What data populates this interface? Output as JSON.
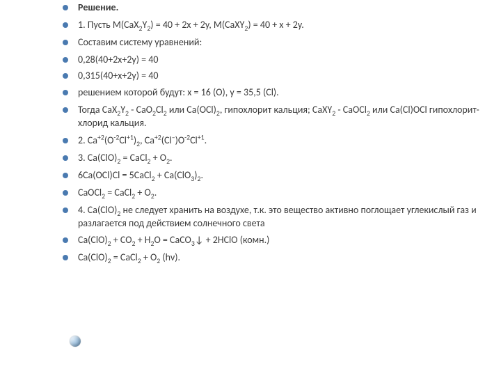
{
  "bullets": {
    "title": "Решение.",
    "l1_a": "1. Пусть M(CaX",
    "l1_b": "Y",
    "l1_c": ") = 40 + 2x + 2y, M(CaXY",
    "l1_d": ") = 40 + x + 2y.",
    "l2": "Составим систему уравнений:",
    "l3": "0,28(40+2x+2y) = 40",
    "l4": "0,315(40+x+2y) = 40",
    "l5": "решением которой будут: x = 16 (O), y = 35,5 (Cl).",
    "l6_a": "Тогда CaX",
    "l6_b": "Y",
    "l6_c": " - CaO",
    "l6_d": "Cl",
    "l6_e": " или Ca(OCl)",
    "l6_f": ", гипохлорит кальция; CaXY",
    "l6_g": " - CaOCl",
    "l6_h": " или Ca(Cl)OCl гипохлорит-хлорид кальция.",
    "l7_a": "2. Ca",
    "l7_b": "(O",
    "l7_c": "Cl",
    "l7_d": ")",
    "l7_e": ", Ca",
    "l7_f": "(Cl",
    "l7_g": ")O",
    "l7_h": "Cl",
    "l7_i": ".",
    "l8_a": "3. Ca(ClO)",
    "l8_b": " = CaCl",
    "l8_c": " + O",
    "l8_d": ".",
    "l9_a": "6Ca(OCl)Cl = 5CaCl",
    "l9_b": " + Ca(ClO",
    "l9_c": ")",
    "l9_d": ".",
    "l10_a": "CaOCl",
    "l10_b": " = CaCl",
    "l10_c": " + O",
    "l10_d": ".",
    "l11_a": "4. Ca(ClO)",
    "l11_b": " не следует хранить на воздухе, т.к. это вещество активно поглощает углекислый газ и разлагается под действием солнечного света",
    "l12_a": "Ca(ClO)",
    "l12_b": " + CO",
    "l12_c": " + H",
    "l12_d": "O = CaCO",
    "l12_e": "↓ + 2HClO (комн.)",
    "l13_a": "Ca(ClO)",
    "l13_b": " = CaCl",
    "l13_c": " + O",
    "l13_d": " (hν).",
    "sub2": "2",
    "sub3": "3",
    "supP2": "+2",
    "supM2": "-2",
    "supP1": "+1",
    "supM": "–"
  },
  "style": {
    "bullet_color": "#4a7ab0",
    "text_color": "#3b3b3b",
    "bg": "#ffffff",
    "fontsize": 14
  }
}
